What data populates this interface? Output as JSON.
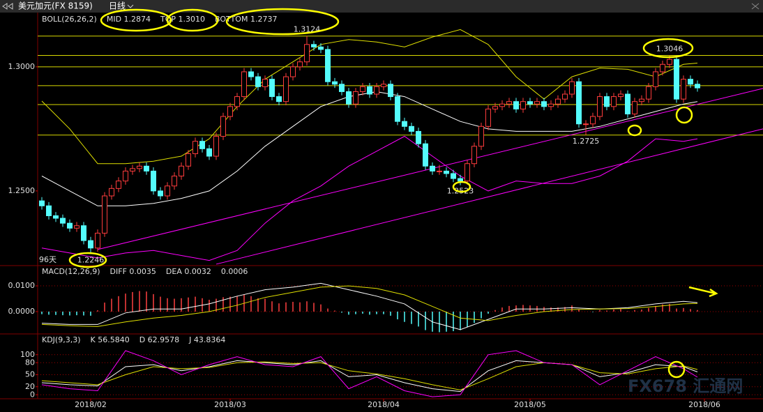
{
  "header": {
    "title": "美元加元(FX 8159)",
    "period": "日线"
  },
  "watermark": "FX678 汇通网",
  "chart_data": [
    {
      "type": "candlestick",
      "legend_title": "BOLL(26,26,2)",
      "period_label": "96天",
      "xlim": [
        -0.6,
        103.4
      ],
      "ylim": [
        1.2202,
        1.3213
      ],
      "yticks": [
        {
          "value": 1.3,
          "label": "1.3000"
        },
        {
          "value": 1.25,
          "label": "1.2500"
        }
      ],
      "up_color": "#ff3c3c",
      "down_color": "#54fcfc",
      "candles": [
        [
          1.246,
          1.2475,
          1.2425,
          1.244
        ],
        [
          1.244,
          1.2455,
          1.2385,
          1.24
        ],
        [
          1.24,
          1.2415,
          1.2375,
          1.239
        ],
        [
          1.239,
          1.2405,
          1.2355,
          1.237
        ],
        [
          1.237,
          1.2385,
          1.2335,
          1.235
        ],
        [
          1.235,
          1.2375,
          1.2335,
          1.236
        ],
        [
          1.236,
          1.2375,
          1.2285,
          1.23
        ],
        [
          1.23,
          1.2315,
          1.2246,
          1.227
        ],
        [
          1.227,
          1.2345,
          1.2255,
          1.233
        ],
        [
          1.233,
          1.2495,
          1.2315,
          1.248
        ],
        [
          1.248,
          1.2525,
          1.2465,
          1.251
        ],
        [
          1.251,
          1.2555,
          1.2495,
          1.254
        ],
        [
          1.254,
          1.2595,
          1.2525,
          1.258
        ],
        [
          1.258,
          1.2605,
          1.2565,
          1.259
        ],
        [
          1.259,
          1.2615,
          1.2575,
          1.26
        ],
        [
          1.26,
          1.2615,
          1.2565,
          1.258
        ],
        [
          1.258,
          1.2595,
          1.2485,
          1.25
        ],
        [
          1.25,
          1.2515,
          1.2465,
          1.248
        ],
        [
          1.248,
          1.2535,
          1.2465,
          1.252
        ],
        [
          1.252,
          1.2575,
          1.2505,
          1.256
        ],
        [
          1.256,
          1.2615,
          1.2545,
          1.26
        ],
        [
          1.26,
          1.2665,
          1.2585,
          1.265
        ],
        [
          1.265,
          1.2715,
          1.2635,
          1.27
        ],
        [
          1.27,
          1.2715,
          1.2655,
          1.267
        ],
        [
          1.267,
          1.2685,
          1.2625,
          1.264
        ],
        [
          1.264,
          1.2735,
          1.2625,
          1.272
        ],
        [
          1.272,
          1.2815,
          1.2705,
          1.28
        ],
        [
          1.28,
          1.2855,
          1.2785,
          1.284
        ],
        [
          1.284,
          1.2895,
          1.2825,
          1.288
        ],
        [
          1.288,
          1.2995,
          1.2865,
          1.298
        ],
        [
          1.298,
          1.2995,
          1.2945,
          1.296
        ],
        [
          1.296,
          1.2975,
          1.2905,
          1.292
        ],
        [
          1.292,
          1.2965,
          1.2905,
          1.295
        ],
        [
          1.295,
          1.2965,
          1.2865,
          1.288
        ],
        [
          1.288,
          1.2895,
          1.2845,
          1.286
        ],
        [
          1.286,
          1.2975,
          1.2845,
          1.296
        ],
        [
          1.296,
          1.3015,
          1.2945,
          1.3
        ],
        [
          1.3,
          1.3035,
          1.2985,
          1.302
        ],
        [
          1.302,
          1.3124,
          1.3005,
          1.309
        ],
        [
          1.309,
          1.3105,
          1.3065,
          1.308
        ],
        [
          1.308,
          1.3095,
          1.3055,
          1.307
        ],
        [
          1.307,
          1.3085,
          1.2925,
          1.294
        ],
        [
          1.294,
          1.2955,
          1.2915,
          1.293
        ],
        [
          1.293,
          1.2945,
          1.2885,
          1.29
        ],
        [
          1.29,
          1.2915,
          1.2835,
          1.285
        ],
        [
          1.285,
          1.2915,
          1.2835,
          1.29
        ],
        [
          1.29,
          1.2935,
          1.2885,
          1.292
        ],
        [
          1.292,
          1.2935,
          1.2875,
          1.289
        ],
        [
          1.289,
          1.2935,
          1.2875,
          1.292
        ],
        [
          1.292,
          1.2945,
          1.2905,
          1.293
        ],
        [
          1.293,
          1.2945,
          1.2865,
          1.288
        ],
        [
          1.288,
          1.2895,
          1.2765,
          1.278
        ],
        [
          1.278,
          1.2795,
          1.2745,
          1.276
        ],
        [
          1.276,
          1.2775,
          1.2725,
          1.274
        ],
        [
          1.274,
          1.2755,
          1.2675,
          1.269
        ],
        [
          1.269,
          1.2705,
          1.2585,
          1.26
        ],
        [
          1.26,
          1.2615,
          1.2565,
          1.258
        ],
        [
          1.258,
          1.2605,
          1.2565,
          1.258
        ],
        [
          1.258,
          1.2595,
          1.2555,
          1.257
        ],
        [
          1.257,
          1.2585,
          1.2535,
          1.255
        ],
        [
          1.255,
          1.2565,
          1.2523,
          1.254
        ],
        [
          1.254,
          1.2625,
          1.2525,
          1.261
        ],
        [
          1.261,
          1.2695,
          1.2595,
          1.268
        ],
        [
          1.268,
          1.2775,
          1.2665,
          1.276
        ],
        [
          1.276,
          1.2845,
          1.2745,
          1.283
        ],
        [
          1.283,
          1.2855,
          1.2815,
          1.284
        ],
        [
          1.284,
          1.2865,
          1.2825,
          1.285
        ],
        [
          1.285,
          1.2875,
          1.2835,
          1.286
        ],
        [
          1.286,
          1.2875,
          1.2815,
          1.283
        ],
        [
          1.283,
          1.2875,
          1.2815,
          1.286
        ],
        [
          1.286,
          1.2875,
          1.2835,
          1.285
        ],
        [
          1.285,
          1.2875,
          1.2835,
          1.286
        ],
        [
          1.286,
          1.2875,
          1.2825,
          1.284
        ],
        [
          1.284,
          1.2865,
          1.2825,
          1.285
        ],
        [
          1.285,
          1.2885,
          1.2835,
          1.287
        ],
        [
          1.287,
          1.2905,
          1.2855,
          1.289
        ],
        [
          1.289,
          1.2955,
          1.2875,
          1.294
        ],
        [
          1.294,
          1.2955,
          1.2755,
          1.277
        ],
        [
          1.277,
          1.2785,
          1.2725,
          1.277
        ],
        [
          1.277,
          1.2815,
          1.2755,
          1.28
        ],
        [
          1.28,
          1.2895,
          1.2785,
          1.288
        ],
        [
          1.288,
          1.2895,
          1.2825,
          1.284
        ],
        [
          1.284,
          1.2895,
          1.2825,
          1.288
        ],
        [
          1.288,
          1.2905,
          1.2865,
          1.289
        ],
        [
          1.289,
          1.2905,
          1.2795,
          1.281
        ],
        [
          1.281,
          1.2875,
          1.2795,
          1.286
        ],
        [
          1.286,
          1.2885,
          1.2845,
          1.287
        ],
        [
          1.287,
          1.2935,
          1.2855,
          1.292
        ],
        [
          1.292,
          1.2995,
          1.2905,
          1.298
        ],
        [
          1.298,
          1.3025,
          1.2965,
          1.301
        ],
        [
          1.301,
          1.3046,
          1.2995,
          1.303
        ],
        [
          1.303,
          1.3045,
          1.2855,
          1.287
        ],
        [
          1.287,
          1.2965,
          1.2855,
          1.295
        ],
        [
          1.295,
          1.2965,
          1.2915,
          1.293
        ],
        [
          1.293,
          1.2945,
          1.29,
          1.2915
        ]
      ],
      "line_x": [
        0,
        4,
        8,
        12,
        16,
        20,
        24,
        28,
        32,
        36,
        40,
        44,
        48,
        52,
        56,
        60,
        64,
        68,
        72,
        76,
        80,
        84,
        88,
        92,
        94
      ],
      "series": [
        {
          "name": "MID 1.2874",
          "color": "#ffffff",
          "values": [
            1.256,
            1.25,
            1.244,
            1.244,
            1.245,
            1.247,
            1.25,
            1.258,
            1.268,
            1.276,
            1.284,
            1.288,
            1.29,
            1.288,
            1.283,
            1.278,
            1.275,
            1.274,
            1.274,
            1.274,
            1.276,
            1.279,
            1.282,
            1.285,
            1.286
          ]
        },
        {
          "name": "TOP 1.3010",
          "color": "#e0e000",
          "values": [
            1.2862,
            1.275,
            1.261,
            1.261,
            1.262,
            1.264,
            1.271,
            1.284,
            1.295,
            1.302,
            1.309,
            1.311,
            1.31,
            1.308,
            1.312,
            1.315,
            1.309,
            1.296,
            1.287,
            1.296,
            1.2995,
            1.299,
            1.296,
            1.301,
            1.3015
          ]
        },
        {
          "name": "BOTTOM 1.2737",
          "color": "#ff00ff",
          "values": [
            1.227,
            1.225,
            1.223,
            1.225,
            1.226,
            1.224,
            1.222,
            1.226,
            1.237,
            1.246,
            1.252,
            1.26,
            1.266,
            1.272,
            1.264,
            1.256,
            1.25,
            1.254,
            1.253,
            1.253,
            1.256,
            1.262,
            1.271,
            1.27,
            1.271
          ]
        }
      ],
      "levels": [
        1.3124,
        1.3046,
        1.3,
        1.2924,
        1.2848,
        1.2725
      ],
      "level_color": "#d8d800",
      "trendlines": [
        [
          [
            8,
            1.2264
          ],
          [
            103.4,
            1.2913
          ]
        ],
        [
          [
            25,
            1.2205
          ],
          [
            103.4,
            1.275
          ]
        ]
      ],
      "trendline_color": "#ff00ff",
      "annotations": [
        {
          "x": 38,
          "y": 1.3124,
          "color": "#ff4040",
          "position": "above"
        },
        {
          "x": 90,
          "y": 1.3046,
          "color": "#ff4040",
          "position": "above"
        },
        {
          "x": 78,
          "y": 1.2725,
          "color": "#54fcfc",
          "position": "below"
        },
        {
          "x": 60,
          "y": 1.2523,
          "color": "#54fcfc",
          "position": "below"
        },
        {
          "x": 7,
          "y": 1.2246,
          "color": "#54fcfc",
          "position": "below"
        }
      ]
    },
    {
      "type": "macd",
      "legend_title": "MACD(12,26,9)",
      "xlim": [
        -0.6,
        103.4
      ],
      "ylim": [
        -0.0084,
        0.0176
      ],
      "yticks": [
        {
          "value": 0.01,
          "label": "0.0100"
        },
        {
          "value": 0,
          "label": "0.0000"
        }
      ],
      "grid": true,
      "histogram": {
        "name": "0.0006",
        "up_color": "#ff4040",
        "down_color": "#54fcfc",
        "values": [
          -0.001,
          -0.0012,
          -0.0013,
          -0.0014,
          -0.0015,
          -0.0014,
          -0.0015,
          -0.0016,
          0.0005,
          0.0035,
          0.005,
          0.006,
          0.007,
          0.0076,
          0.008,
          0.0078,
          0.0068,
          0.0058,
          0.0052,
          0.005,
          0.0052,
          0.0055,
          0.0058,
          0.0052,
          0.0046,
          0.005,
          0.0056,
          0.0058,
          0.006,
          0.0066,
          0.006,
          0.0052,
          0.005,
          0.004,
          0.0032,
          0.0036,
          0.0038,
          0.0036,
          0.004,
          0.0034,
          0.0028,
          0.0012,
          0.0004,
          -0.0004,
          -0.0012,
          -0.001,
          -0.0008,
          -0.0012,
          -0.001,
          -0.001,
          -0.0016,
          -0.003,
          -0.004,
          -0.0048,
          -0.0058,
          -0.0072,
          -0.0078,
          -0.008,
          -0.0078,
          -0.0076,
          -0.0072,
          -0.006,
          -0.0044,
          -0.0026,
          -0.0008,
          0.0006,
          0.0016,
          0.0022,
          0.0024,
          0.0026,
          0.0024,
          0.0022,
          0.0018,
          0.0016,
          0.0016,
          0.0018,
          0.0024,
          0.0008,
          0.0,
          -0.0002,
          0.0006,
          0.0004,
          0.0008,
          0.001,
          0.0002,
          0.0006,
          0.0008,
          0.0014,
          0.0022,
          0.0028,
          0.003,
          0.0012,
          0.0014,
          0.001,
          0.0006
        ]
      },
      "line_x": [
        0,
        4,
        8,
        12,
        16,
        20,
        24,
        28,
        32,
        36,
        40,
        44,
        48,
        52,
        56,
        60,
        64,
        68,
        72,
        76,
        80,
        84,
        88,
        92,
        94
      ],
      "series": [
        {
          "name": "DIFF 0.0035",
          "color": "#ffffff",
          "values": [
            -0.0045,
            -0.005,
            -0.005,
            -0.0005,
            0.001,
            0.001,
            0.003,
            0.006,
            0.0085,
            0.0095,
            0.011,
            0.0085,
            0.006,
            0.003,
            -0.004,
            -0.007,
            -0.003,
            0.001,
            0.001,
            0.0015,
            0.001,
            0.0015,
            0.003,
            0.004,
            0.0035
          ]
        },
        {
          "name": "DEA 0.0032",
          "color": "#e0e000",
          "values": [
            -0.005,
            -0.0055,
            -0.0058,
            -0.004,
            -0.0025,
            -0.0015,
            0.0,
            0.0025,
            0.0055,
            0.0075,
            0.0095,
            0.01,
            0.009,
            0.0065,
            0.002,
            -0.0025,
            -0.0035,
            -0.0015,
            0.0,
            0.0008,
            0.001,
            0.0012,
            0.002,
            0.003,
            0.0032
          ]
        }
      ]
    },
    {
      "type": "line",
      "legend_title": "KDJ(9,3,3)",
      "xlim": [
        -0.6,
        103.4
      ],
      "ylim": [
        -10,
        150
      ],
      "yticks": [
        100,
        80,
        50,
        20,
        0
      ],
      "grid": true,
      "xticks": [
        {
          "value": 7,
          "label": "2018/02"
        },
        {
          "value": 27,
          "label": "2018/03"
        },
        {
          "value": 49,
          "label": "2018/04"
        },
        {
          "value": 70,
          "label": "2018/05"
        },
        {
          "value": 95,
          "label": "2018/06"
        }
      ],
      "line_x": [
        0,
        4,
        8,
        12,
        16,
        20,
        24,
        28,
        32,
        36,
        40,
        44,
        48,
        52,
        56,
        60,
        64,
        68,
        72,
        76,
        80,
        84,
        88,
        92,
        94
      ],
      "series": [
        {
          "name": "K 56.5840",
          "color": "#ffffff",
          "values": [
            30,
            25,
            22,
            70,
            75,
            60,
            70,
            85,
            80,
            75,
            85,
            45,
            50,
            30,
            15,
            8,
            60,
            85,
            80,
            75,
            45,
            55,
            75,
            70,
            57
          ]
        },
        {
          "name": "D 62.9578",
          "color": "#e0e000",
          "values": [
            35,
            30,
            25,
            50,
            70,
            65,
            68,
            80,
            82,
            78,
            80,
            60,
            52,
            40,
            25,
            12,
            40,
            70,
            80,
            75,
            55,
            52,
            65,
            72,
            63
          ]
        },
        {
          "name": "J 43.8364",
          "color": "#ff00ff",
          "values": [
            25,
            15,
            10,
            110,
            85,
            50,
            75,
            95,
            75,
            70,
            95,
            15,
            45,
            10,
            -5,
            0,
            100,
            110,
            80,
            75,
            25,
            60,
            95,
            65,
            44
          ]
        }
      ]
    }
  ]
}
